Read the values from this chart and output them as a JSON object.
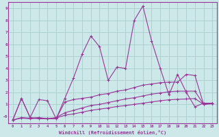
{
  "xlabel": "Windchill (Refroidissement éolien,°C)",
  "background_color": "#cce8e8",
  "grid_color": "#aacccc",
  "line_color": "#993399",
  "x_ticks": [
    0,
    1,
    2,
    3,
    4,
    5,
    6,
    7,
    8,
    9,
    10,
    11,
    12,
    13,
    14,
    15,
    16,
    17,
    18,
    19,
    20,
    21,
    22,
    23
  ],
  "y_ticks": [
    0,
    1,
    2,
    3,
    4,
    5,
    6,
    7,
    8,
    9
  ],
  "ylim": [
    -0.6,
    9.5
  ],
  "xlim": [
    -0.5,
    23.5
  ],
  "series1_x": [
    0,
    1,
    2,
    3,
    4,
    5,
    6,
    7,
    8,
    9,
    10,
    11,
    12,
    13,
    14,
    15,
    16,
    17,
    18,
    19,
    20,
    21,
    22,
    23
  ],
  "series1_y": [
    -0.3,
    1.5,
    -0.1,
    1.4,
    1.3,
    -0.2,
    1.5,
    3.2,
    5.2,
    6.7,
    5.8,
    3.0,
    4.1,
    4.0,
    8.0,
    9.2,
    6.3,
    4.0,
    1.8,
    3.5,
    2.0,
    0.8,
    1.1,
    1.1
  ],
  "series2_x": [
    0,
    1,
    2,
    3,
    4,
    5,
    6,
    7,
    8,
    9,
    10,
    11,
    12,
    13,
    14,
    15,
    16,
    17,
    18,
    19,
    20,
    21,
    22,
    23
  ],
  "series2_y": [
    -0.3,
    1.5,
    -0.1,
    -0.2,
    -0.2,
    -0.2,
    1.2,
    1.4,
    1.5,
    1.6,
    1.8,
    1.9,
    2.1,
    2.2,
    2.4,
    2.6,
    2.7,
    2.8,
    2.85,
    2.85,
    3.5,
    3.4,
    1.0,
    1.1
  ],
  "series3_x": [
    0,
    1,
    2,
    3,
    4,
    5,
    6,
    7,
    8,
    9,
    10,
    11,
    12,
    13,
    14,
    15,
    16,
    17,
    18,
    19,
    20,
    21,
    22,
    23
  ],
  "series3_y": [
    -0.3,
    -0.1,
    -0.15,
    -0.1,
    -0.2,
    -0.1,
    0.3,
    0.5,
    0.7,
    0.9,
    1.0,
    1.15,
    1.3,
    1.45,
    1.55,
    1.7,
    1.85,
    1.95,
    2.05,
    2.1,
    2.1,
    2.1,
    1.0,
    1.1
  ],
  "series4_x": [
    0,
    1,
    2,
    3,
    4,
    5,
    6,
    7,
    8,
    9,
    10,
    11,
    12,
    13,
    14,
    15,
    16,
    17,
    18,
    19,
    20,
    21,
    22,
    23
  ],
  "series4_y": [
    -0.3,
    -0.15,
    -0.2,
    -0.15,
    -0.2,
    -0.15,
    0.1,
    0.2,
    0.35,
    0.5,
    0.6,
    0.7,
    0.82,
    0.9,
    1.0,
    1.1,
    1.2,
    1.3,
    1.38,
    1.42,
    1.45,
    1.48,
    1.0,
    1.05
  ]
}
